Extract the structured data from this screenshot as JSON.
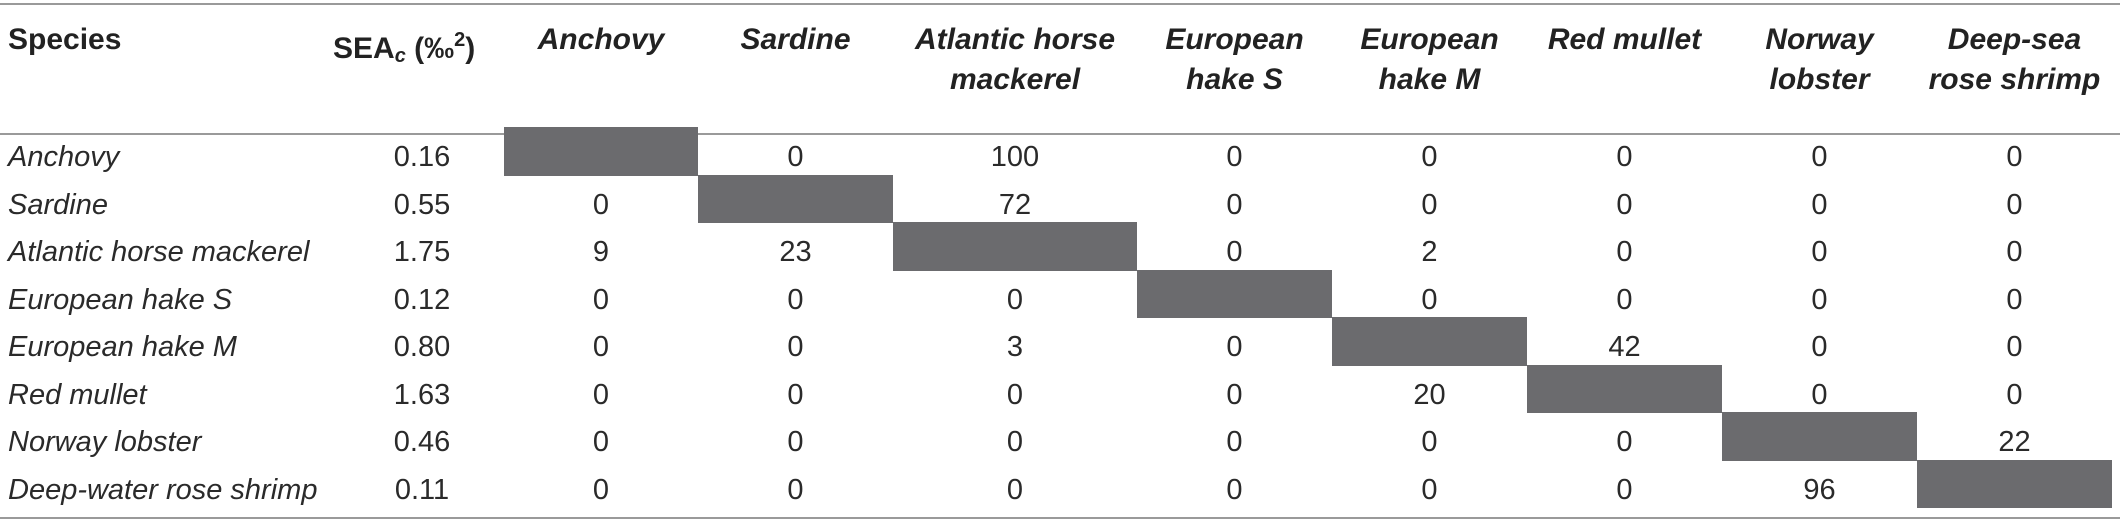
{
  "table": {
    "header": {
      "species": "Species",
      "sea_main": "SEA",
      "sea_sub": "c",
      "sea_unit": " (‰",
      "sea_sup": "2",
      "sea_close": ")",
      "columns": [
        [
          "Anchovy"
        ],
        [
          "Sardine"
        ],
        [
          "Atlantic horse",
          "mackerel"
        ],
        [
          "European",
          "hake S"
        ],
        [
          "European",
          "hake M"
        ],
        [
          "Red mullet"
        ],
        [
          "Norway",
          "lobster"
        ],
        [
          "Deep-sea",
          "rose shrimp"
        ]
      ]
    },
    "rows": [
      {
        "species": "Anchovy",
        "sea": "0.16",
        "values": [
          "",
          "0",
          "100",
          "0",
          "0",
          "0",
          "0",
          "0"
        ]
      },
      {
        "species": "Sardine",
        "sea": "0.55",
        "values": [
          "0",
          "",
          "72",
          "0",
          "0",
          "0",
          "0",
          "0"
        ]
      },
      {
        "species": "Atlantic horse mackerel",
        "sea": "1.75",
        "values": [
          "9",
          "23",
          "",
          "0",
          "2",
          "0",
          "0",
          "0"
        ]
      },
      {
        "species": "European hake S",
        "sea": "0.12",
        "values": [
          "0",
          "0",
          "0",
          "",
          "0",
          "0",
          "0",
          "0"
        ]
      },
      {
        "species": "European hake M",
        "sea": "0.80",
        "values": [
          "0",
          "0",
          "3",
          "0",
          "",
          "42",
          "0",
          "0"
        ]
      },
      {
        "species": "Red mullet",
        "sea": "1.63",
        "values": [
          "0",
          "0",
          "0",
          "0",
          "20",
          "",
          "0",
          "0"
        ]
      },
      {
        "species": "Norway lobster",
        "sea": "0.46",
        "values": [
          "0",
          "0",
          "0",
          "0",
          "0",
          "0",
          "",
          "22"
        ]
      },
      {
        "species": "Deep-water rose shrimp",
        "sea": "0.11",
        "values": [
          "0",
          "0",
          "0",
          "0",
          "0",
          "0",
          "96",
          ""
        ]
      }
    ],
    "colors": {
      "diagonal_block": "#6b6b6e",
      "rule": "#9a9a9a"
    }
  }
}
